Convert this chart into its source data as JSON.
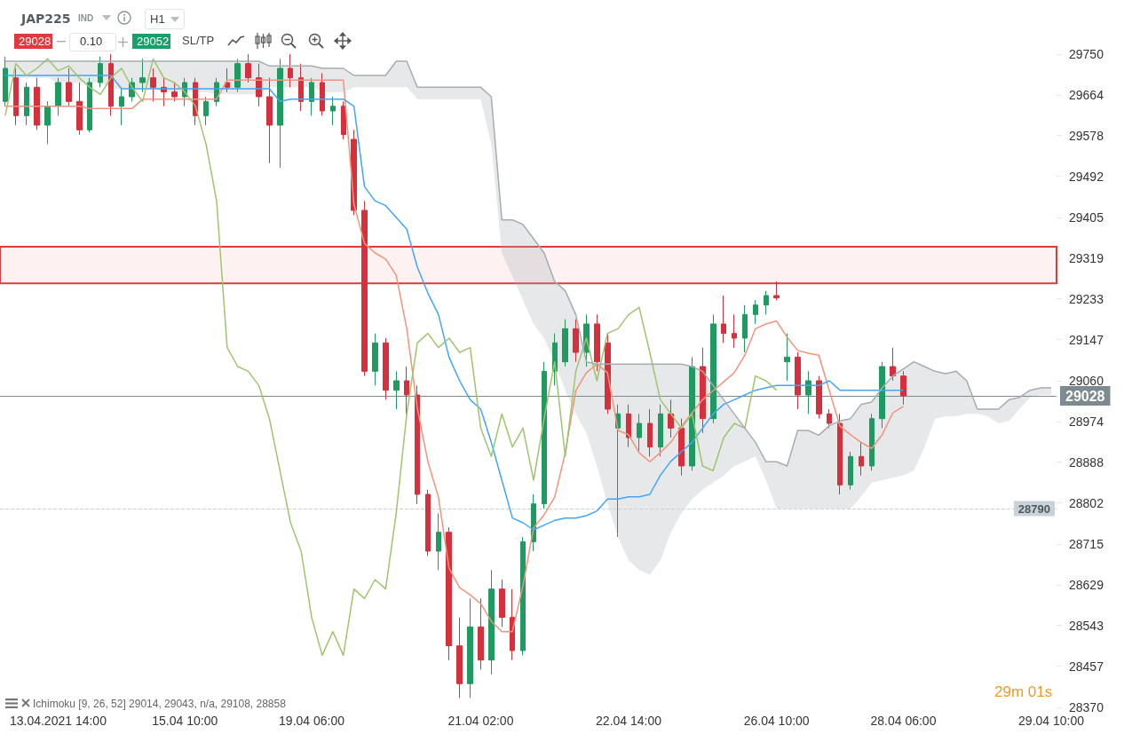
{
  "chart_data": {
    "type": "candlestick",
    "title": "JAP225",
    "categories": [
      null,
      null,
      null,
      null,
      null,
      "13.04.2021 14:00",
      null,
      null,
      null,
      null,
      null,
      null,
      null,
      null,
      null,
      null,
      null,
      "15.04 10:00",
      null,
      null,
      null,
      null,
      null,
      null,
      null,
      null,
      null,
      null,
      null,
      "19.04 06:00",
      null,
      null,
      null,
      null,
      null,
      null,
      null,
      null,
      null,
      null,
      null,
      null,
      null,
      null,
      null,
      "21.04 02:00",
      null,
      null,
      null,
      null,
      null,
      null,
      null,
      null,
      null,
      null,
      null,
      null,
      null,
      "22.04 14:00",
      null,
      null,
      null,
      null,
      null,
      null,
      null,
      null,
      null,
      null,
      null,
      null,
      null,
      "26.04 10:00",
      null,
      null,
      null,
      null,
      null,
      null,
      null,
      null,
      null,
      null,
      null,
      "28.04 06:00",
      null,
      null,
      null,
      null,
      null,
      null,
      null,
      null,
      null,
      null,
      null,
      null,
      null,
      "29.04 10:00"
    ],
    "ohlc": [
      [
        29650,
        29745,
        29640,
        29720
      ],
      [
        29700,
        29720,
        29600,
        29620
      ],
      [
        29620,
        29690,
        29600,
        29680
      ],
      [
        29680,
        29700,
        29590,
        29600
      ],
      [
        29600,
        29650,
        29560,
        29640
      ],
      [
        29640,
        29700,
        29620,
        29690
      ],
      [
        29690,
        29720,
        29640,
        29650
      ],
      [
        29650,
        29690,
        29580,
        29590
      ],
      [
        29590,
        29700,
        29585,
        29690
      ],
      [
        29690,
        29745,
        29680,
        29730
      ],
      [
        29730,
        29750,
        29620,
        29640
      ],
      [
        29640,
        29680,
        29600,
        29660
      ],
      [
        29660,
        29700,
        29650,
        29690
      ],
      [
        29690,
        29740,
        29670,
        29700
      ],
      [
        29700,
        29720,
        29650,
        29680
      ],
      [
        29680,
        29700,
        29640,
        29670
      ],
      [
        29670,
        29690,
        29650,
        29660
      ],
      [
        29660,
        29700,
        29640,
        29690
      ],
      [
        29690,
        29700,
        29600,
        29620
      ],
      [
        29620,
        29660,
        29600,
        29650
      ],
      [
        29650,
        29700,
        29640,
        29690
      ],
      [
        29690,
        29720,
        29670,
        29680
      ],
      [
        29680,
        29740,
        29670,
        29730
      ],
      [
        29730,
        29750,
        29690,
        29700
      ],
      [
        29700,
        29730,
        29640,
        29660
      ],
      [
        29660,
        29700,
        29520,
        29600
      ],
      [
        29600,
        29740,
        29510,
        29720
      ],
      [
        29720,
        29750,
        29680,
        29700
      ],
      [
        29700,
        29730,
        29630,
        29650
      ],
      [
        29650,
        29700,
        29620,
        29690
      ],
      [
        29690,
        29710,
        29620,
        29630
      ],
      [
        29630,
        29660,
        29600,
        29640
      ],
      [
        29640,
        29650,
        29570,
        29580
      ],
      [
        29570,
        29590,
        29410,
        29420
      ],
      [
        29420,
        29440,
        29070,
        29080
      ],
      [
        29080,
        29160,
        29050,
        29140
      ],
      [
        29140,
        29150,
        29020,
        29040
      ],
      [
        29040,
        29080,
        29000,
        29060
      ],
      [
        29060,
        29090,
        28990,
        29030
      ],
      [
        29030,
        29050,
        28800,
        28820
      ],
      [
        28820,
        28830,
        28690,
        28700
      ],
      [
        28700,
        28780,
        28660,
        28740
      ],
      [
        28740,
        28750,
        28470,
        28500
      ],
      [
        28500,
        28560,
        28390,
        28420
      ],
      [
        28420,
        28600,
        28390,
        28540
      ],
      [
        28540,
        28600,
        28450,
        28470
      ],
      [
        28470,
        28660,
        28440,
        28620
      ],
      [
        28620,
        28640,
        28540,
        28560
      ],
      [
        28560,
        28620,
        28470,
        28490
      ],
      [
        28490,
        28730,
        28480,
        28720
      ],
      [
        28720,
        28820,
        28700,
        28800
      ],
      [
        28800,
        29100,
        28790,
        29080
      ],
      [
        29080,
        29160,
        29050,
        29140
      ],
      [
        29100,
        29190,
        29090,
        29170
      ],
      [
        29170,
        29190,
        29100,
        29120
      ],
      [
        29120,
        29200,
        29090,
        29180
      ],
      [
        29180,
        29200,
        29080,
        29100
      ],
      [
        29140,
        29160,
        28990,
        29000
      ],
      [
        28960,
        29010,
        28730,
        28990
      ],
      [
        28990,
        29010,
        28920,
        28940
      ],
      [
        28940,
        28990,
        28910,
        28970
      ],
      [
        28970,
        29000,
        28900,
        28920
      ],
      [
        28920,
        29010,
        28900,
        28990
      ],
      [
        28990,
        29020,
        28940,
        28960
      ],
      [
        28960,
        28980,
        28860,
        28880
      ],
      [
        28880,
        29110,
        28870,
        29090
      ],
      [
        29090,
        29130,
        28950,
        28980
      ],
      [
        28980,
        29200,
        28970,
        29180
      ],
      [
        29180,
        29240,
        29140,
        29160
      ],
      [
        29160,
        29200,
        29130,
        29150
      ],
      [
        29150,
        29220,
        29120,
        29200
      ],
      [
        29200,
        29230,
        29180,
        29220
      ],
      [
        29220,
        29250,
        29200,
        29240
      ],
      [
        29240,
        29270,
        29230,
        29235
      ],
      [
        29100,
        29160,
        29060,
        29110
      ],
      [
        29110,
        29120,
        29000,
        29030
      ],
      [
        29030,
        29080,
        28990,
        29060
      ],
      [
        29060,
        29070,
        28980,
        28990
      ],
      [
        28990,
        29000,
        28960,
        28970
      ],
      [
        28970,
        28990,
        28820,
        28840
      ],
      [
        28840,
        28910,
        28830,
        28900
      ],
      [
        28900,
        28930,
        28860,
        28880
      ],
      [
        28880,
        28990,
        28870,
        28980
      ],
      [
        28980,
        29100,
        28960,
        29090
      ],
      [
        29090,
        29130,
        29060,
        29070
      ],
      [
        29070,
        29080,
        29010,
        29028
      ],
      null,
      null,
      null,
      null,
      null,
      null,
      null,
      null,
      null,
      null,
      null,
      null,
      null,
      null
    ],
    "colors": [
      "#1f9a60",
      "#d7303d",
      "#1f9a60",
      "#d7303d",
      "#1f9a60",
      "#1f9a60",
      "#d7303d",
      "#d7303d",
      "#1f9a60",
      "#1f9a60",
      "#d7303d",
      "#1f9a60",
      "#1f9a60",
      "#1f9a60",
      "#d7303d",
      "#d7303d",
      "#d7303d",
      "#1f9a60",
      "#d7303d",
      "#1f9a60",
      "#1f9a60",
      "#d7303d",
      "#1f9a60",
      "#d7303d",
      "#d7303d",
      "#d7303d",
      "#1f9a60",
      "#d7303d",
      "#d7303d",
      "#1f9a60",
      "#d7303d",
      "#1f9a60",
      "#d7303d",
      "#d7303d",
      "#d7303d",
      "#1f9a60",
      "#d7303d",
      "#1f9a60",
      "#d7303d",
      "#d7303d",
      "#d7303d",
      "#1f9a60",
      "#d7303d",
      "#d7303d",
      "#1f9a60",
      "#d7303d",
      "#1f9a60",
      "#d7303d",
      "#d7303d",
      "#1f9a60",
      "#1f9a60",
      "#1f9a60",
      "#1f9a60",
      "#1f9a60",
      "#d7303d",
      "#1f9a60",
      "#d7303d",
      "#d7303d",
      "#1f9a60",
      "#d7303d",
      "#1f9a60",
      "#d7303d",
      "#1f9a60",
      "#d7303d",
      "#d7303d",
      "#1f9a60",
      "#d7303d",
      "#1f9a60",
      "#d7303d",
      "#d7303d",
      "#1f9a60",
      "#1f9a60",
      "#1f9a60",
      "#d7303d",
      "#1f9a60",
      "#d7303d",
      "#1f9a60",
      "#d7303d",
      "#d7303d",
      "#d7303d",
      "#1f9a60",
      "#d7303d",
      "#1f9a60",
      "#1f9a60",
      "#d7303d",
      "#d7303d",
      null,
      null,
      null,
      null,
      null,
      null,
      null,
      null,
      null,
      null,
      null,
      null,
      null,
      null
    ],
    "series": [
      {
        "type": "line",
        "color": "#f2937b",
        "values": [
          29640,
          29640,
          29640,
          29640,
          29640,
          29640,
          29640,
          29640,
          29635,
          29635,
          29635,
          29635,
          29635,
          29655,
          29655,
          29655,
          29655,
          29655,
          29655,
          29655,
          29655,
          29695,
          29695,
          29695,
          29695,
          29695,
          29695,
          29695,
          29695,
          29695,
          29695,
          29695,
          29695,
          29433,
          29350,
          29330,
          29317,
          29283,
          29170,
          29002,
          28889,
          28814,
          28664,
          28623,
          28608,
          28589,
          28552,
          28530,
          28530,
          28627,
          28749,
          28777,
          28814,
          28908,
          29039,
          29077,
          29095,
          29077,
          28955,
          28946,
          28908,
          28889,
          28908,
          28930,
          28964,
          28992,
          29020,
          29039,
          29058,
          29077,
          29114,
          29170,
          29180,
          29186,
          29152,
          29124,
          29118,
          29114,
          29039,
          28964,
          28946,
          28930,
          28917,
          28946,
          28992,
          29006,
          null,
          null,
          null,
          null,
          null,
          null,
          null,
          null,
          null,
          null,
          null,
          null,
          null,
          null
        ]
      },
      {
        "type": "line",
        "color": "#42a5f5",
        "values": [
          29705,
          29705,
          29705,
          29705,
          29705,
          29705,
          29705,
          29705,
          29705,
          29705,
          29705,
          29677,
          29677,
          29677,
          29677,
          29677,
          29677,
          29677,
          29677,
          29677,
          29677,
          29677,
          29677,
          29677,
          29677,
          29677,
          29650,
          29655,
          29655,
          29655,
          29655,
          29655,
          29655,
          29640,
          29470,
          29440,
          29430,
          29405,
          29380,
          29300,
          29245,
          29200,
          29110,
          29060,
          29020,
          29000,
          28930,
          28850,
          28770,
          28760,
          28745,
          28755,
          28765,
          28770,
          28770,
          28775,
          28785,
          28810,
          28810,
          28815,
          28815,
          28820,
          28860,
          28890,
          28910,
          28930,
          28960,
          28990,
          29010,
          29020,
          29030,
          29040,
          29045,
          29050,
          29050,
          29050,
          29050,
          29050,
          29060,
          29040,
          29040,
          29040,
          29040,
          29040,
          29040,
          29040,
          null,
          null,
          null,
          null,
          null,
          null,
          null,
          null,
          null,
          null,
          null,
          null,
          null,
          null
        ]
      },
      {
        "type": "line",
        "color": "#9fc46e",
        "values": [
          29620,
          29730,
          29705,
          29720,
          29740,
          29715,
          29725,
          29700,
          29680,
          29665,
          29700,
          29720,
          29680,
          29650,
          29740,
          29700,
          29690,
          29670,
          29640,
          29560,
          29440,
          29130,
          29090,
          29080,
          29050,
          28980,
          28870,
          28760,
          28700,
          28560,
          28480,
          28530,
          28480,
          28620,
          28600,
          28640,
          28620,
          28780,
          28990,
          29140,
          29160,
          29130,
          29150,
          29120,
          29130,
          28960,
          28900,
          28990,
          28920,
          28960,
          28850,
          28980,
          29100,
          28900,
          29080,
          29150,
          29060,
          29160,
          29170,
          29200,
          29215,
          29120,
          29020,
          28990,
          28960,
          28990,
          28880,
          28870,
          28940,
          28970,
          28960,
          29070,
          29060,
          29040,
          null,
          null,
          null,
          null,
          null,
          null,
          null,
          null,
          null,
          null,
          null,
          null,
          null,
          null,
          null,
          null,
          null,
          null,
          null,
          null,
          null,
          null,
          null,
          null,
          null,
          null
        ]
      },
      {
        "type": "line",
        "color": "#a4adb3",
        "values": [
          29735,
          29735,
          29735,
          29735,
          29735,
          29735,
          29735,
          29735,
          29735,
          29735,
          29735,
          29735,
          29735,
          29735,
          29735,
          29735,
          29735,
          29735,
          29735,
          29735,
          29735,
          29735,
          29735,
          29735,
          29735,
          29725,
          29725,
          29725,
          29725,
          29725,
          29720,
          29720,
          29720,
          29705,
          29705,
          29705,
          29705,
          29735,
          29735,
          29680,
          29680,
          29680,
          29680,
          29680,
          29680,
          29680,
          29660,
          29400,
          29400,
          29390,
          29360,
          29330,
          29270,
          29250,
          29200,
          29100,
          29095,
          29095,
          29095,
          29095,
          29095,
          29095,
          29095,
          29095,
          29095,
          29090,
          29080,
          29050,
          29020,
          28990,
          28960,
          28930,
          28889,
          28889,
          28880,
          28955,
          28955,
          28945,
          28965,
          28975,
          28980,
          29010,
          29015,
          29045,
          29070,
          29085,
          29100,
          29090,
          29080,
          29075,
          29080,
          29060,
          29000,
          29000,
          29000,
          29020,
          29025,
          29040,
          29045,
          29045
        ],
        "lower": [
          29700,
          29700,
          29700,
          29700,
          29700,
          29690,
          29690,
          29690,
          29690,
          29690,
          29677,
          29677,
          29677,
          29677,
          29677,
          29670,
          29670,
          29670,
          29670,
          29670,
          29665,
          29665,
          29665,
          29665,
          29665,
          29680,
          29680,
          29680,
          29680,
          29680,
          29670,
          29670,
          29670,
          29680,
          29680,
          29680,
          29680,
          29680,
          29680,
          29655,
          29655,
          29655,
          29655,
          29655,
          29655,
          29655,
          29560,
          29330,
          29280,
          29230,
          29180,
          29150,
          29100,
          29040,
          28990,
          28950,
          28880,
          28800,
          28730,
          28680,
          28660,
          28650,
          28680,
          28740,
          28780,
          28810,
          28830,
          28845,
          28860,
          28880,
          28890,
          28900,
          28850,
          28790,
          28790,
          28790,
          28790,
          28790,
          28790,
          28790,
          28790,
          28815,
          28845,
          28850,
          28855,
          28860,
          28870,
          28920,
          28980,
          28985,
          28985,
          28990,
          28990,
          28985,
          28970,
          28975,
          29000,
          29025,
          29030,
          29030
        ],
        "upper": [
          29735,
          29735,
          29735,
          29735,
          29735,
          29735,
          29735,
          29735,
          29735,
          29735,
          29735,
          29735,
          29735,
          29735,
          29735,
          29735,
          29735,
          29735,
          29735,
          29735,
          29735,
          29735,
          29735,
          29735,
          29735,
          29725,
          29725,
          29725,
          29725,
          29725,
          29720,
          29720,
          29720,
          29705,
          29705,
          29705,
          29705,
          29735,
          29735,
          29680,
          29680,
          29680,
          29680,
          29680,
          29680,
          29680,
          29660,
          29400,
          29400,
          29390,
          29360,
          29330,
          29270,
          29250,
          29200,
          29100,
          29095,
          29095,
          29095,
          29095,
          29095,
          29095,
          29095,
          29095,
          29095,
          29090,
          29080,
          29050,
          29020,
          28990,
          28960,
          28930,
          28889,
          28889,
          28880,
          28955,
          28955,
          28945,
          28965,
          28975,
          28980,
          29010,
          29015,
          29045,
          29070,
          29085,
          29100,
          29090,
          29080,
          29075,
          29080,
          29060,
          29000,
          29000,
          29000,
          29020,
          29025,
          29040,
          29045,
          29045
        ]
      }
    ],
    "marker": "none",
    "ylim": [
      28370,
      29750
    ],
    "yticks": [
      28370,
      28457,
      28543,
      28629,
      28715,
      28802,
      28888,
      28974,
      29060,
      29147,
      29233,
      29319,
      29405,
      29492,
      29578,
      29664,
      29750
    ],
    "ref_lines": [
      {
        "axis": "y",
        "value": 29028,
        "label": "29028",
        "color": "#7d8a8f"
      },
      {
        "axis": "y",
        "value": 28790,
        "label": "28790",
        "color": "#c9d2d6",
        "line_style": "dashed"
      }
    ],
    "bands": [
      {
        "axis": "y",
        "from": 29266,
        "to": 29343,
        "color": "#e53935"
      }
    ],
    "annotations": [
      "IND",
      "H1",
      "29028",
      "0.10",
      "29052",
      "SL/TP",
      "Ichimoku [9, 26, 52] 29014, 29043, n/a, 29108, 28858",
      "29m 01s"
    ],
    "grid": false
  }
}
